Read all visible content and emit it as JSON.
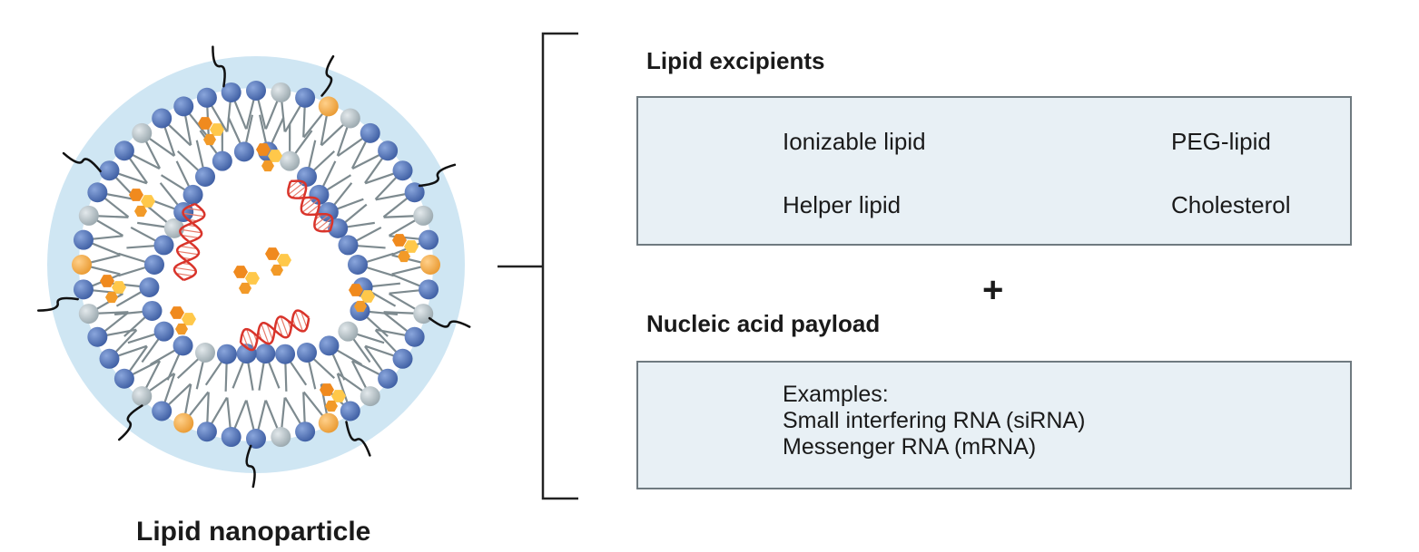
{
  "nanoparticle": {
    "caption": "Lipid nanoparticle"
  },
  "excipients": {
    "heading": "Lipid excipients",
    "items": [
      {
        "label": "Ionizable lipid",
        "icon": "ionizable-lipid-icon",
        "color": "#4a6fb5"
      },
      {
        "label": "PEG-lipid",
        "icon": "peg-lipid-icon",
        "color": "#f2a541"
      },
      {
        "label": "Helper lipid",
        "icon": "helper-lipid-icon",
        "color": "#b7c3c9"
      },
      {
        "label": "Cholesterol",
        "icon": "cholesterol-icon",
        "color": "#f08a1e"
      }
    ]
  },
  "plus_sign": "+",
  "payload": {
    "heading": "Nucleic acid payload",
    "lines": [
      "Examples:",
      "Small interfering RNA (siRNA)",
      "Messenger RNA (mRNA)"
    ],
    "icon": "rna-helix-icon",
    "color": "#d9342b"
  },
  "colors": {
    "particle_halo": "#cfe6f3",
    "panel_fill": "#e8f0f5",
    "lipid_tail": "#7d8a8f"
  }
}
